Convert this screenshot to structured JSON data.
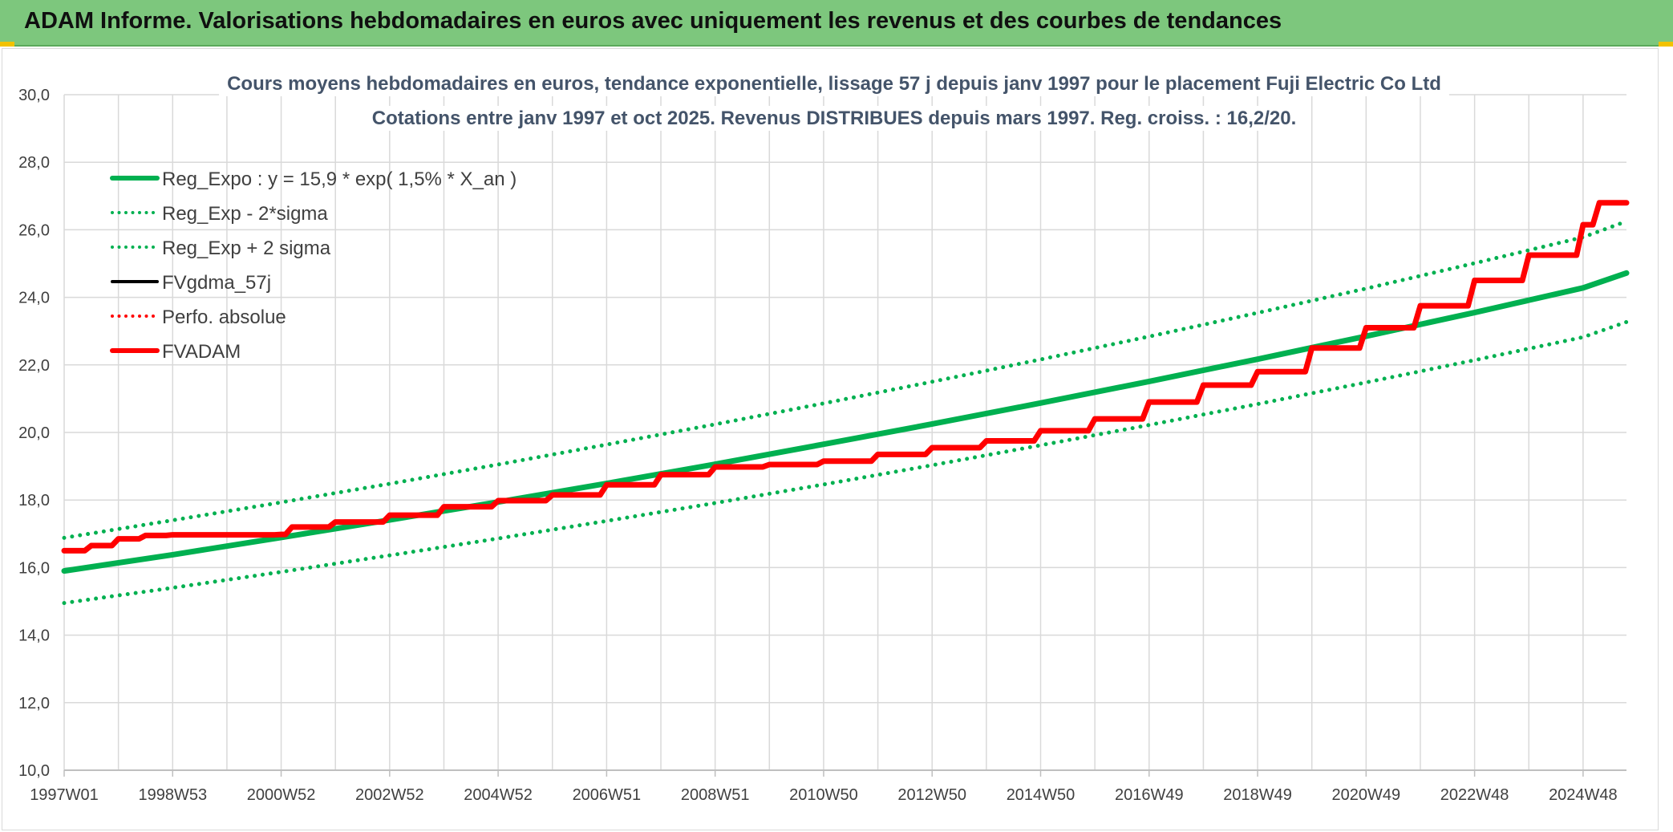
{
  "header": {
    "title": "ADAM Informe. Valorisations hebdomadaires en euros avec uniquement les revenus et des courbes de tendances"
  },
  "chart_data": {
    "type": "line",
    "title": "Cours moyens hebdomadaires en euros, tendance exponentielle, lissage 57 j depuis janv 1997 pour le placement Fuji Electric Co Ltd",
    "subtitle": "Cotations entre janv 1997 et oct 2025. Revenus DISTRIBUES depuis mars 1997. Reg. croiss. : 16,2/20.",
    "xlabel": "",
    "ylabel": "",
    "ylim": [
      10,
      30
    ],
    "xlim": [
      1997.0,
      2025.8
    ],
    "yticks": [
      "10,0",
      "12,0",
      "14,0",
      "16,0",
      "18,0",
      "20,0",
      "22,0",
      "24,0",
      "26,0",
      "28,0",
      "30,0"
    ],
    "xticks": [
      {
        "label": "1997W01",
        "x": 1997.0
      },
      {
        "label": "1998W53",
        "x": 1999.0
      },
      {
        "label": "2000W52",
        "x": 2001.0
      },
      {
        "label": "2002W52",
        "x": 2003.0
      },
      {
        "label": "2004W52",
        "x": 2005.0
      },
      {
        "label": "2006W51",
        "x": 2007.0
      },
      {
        "label": "2008W51",
        "x": 2009.0
      },
      {
        "label": "2010W50",
        "x": 2011.0
      },
      {
        "label": "2012W50",
        "x": 2013.0
      },
      {
        "label": "2014W50",
        "x": 2015.0
      },
      {
        "label": "2016W49",
        "x": 2017.0
      },
      {
        "label": "2018W49",
        "x": 2019.0
      },
      {
        "label": "2020W49",
        "x": 2021.0
      },
      {
        "label": "2022W48",
        "x": 2023.0
      },
      {
        "label": "2024W48",
        "x": 2025.0
      }
    ],
    "grid": true,
    "legend_position": "top-left",
    "colors": {
      "green": "#00b050",
      "red": "#ff0000",
      "black": "#000000",
      "grid": "#d9d9d9",
      "text": "#404040",
      "title": "#44546a"
    },
    "series": [
      {
        "name": "Reg_Expo : y = 15,9 * exp( 1,5% *  X_an )",
        "style": "solid",
        "color": "#00b050",
        "x": [
          1997.0,
          1999.0,
          2001.0,
          2003.0,
          2005.0,
          2007.0,
          2009.0,
          2011.0,
          2013.0,
          2015.0,
          2017.0,
          2019.0,
          2021.0,
          2023.0,
          2025.0,
          2025.8
        ],
        "values": [
          15.9,
          16.38,
          16.89,
          17.41,
          17.94,
          18.49,
          19.06,
          19.65,
          20.25,
          20.87,
          21.51,
          22.17,
          22.85,
          23.55,
          24.28,
          24.72
        ]
      },
      {
        "name": "Reg_Exp - 2*sigma",
        "style": "dotted",
        "color": "#00b050",
        "x": [
          1997.0,
          1999.0,
          2001.0,
          2003.0,
          2005.0,
          2007.0,
          2009.0,
          2011.0,
          2013.0,
          2015.0,
          2017.0,
          2019.0,
          2021.0,
          2023.0,
          2025.0,
          2025.8
        ],
        "values": [
          14.95,
          15.4,
          15.87,
          16.36,
          16.86,
          17.38,
          17.91,
          18.46,
          19.03,
          19.62,
          20.22,
          20.84,
          21.48,
          22.14,
          22.82,
          23.27
        ]
      },
      {
        "name": "Reg_Exp + 2 sigma",
        "style": "dotted",
        "color": "#00b050",
        "x": [
          1997.0,
          1999.0,
          2001.0,
          2003.0,
          2005.0,
          2007.0,
          2009.0,
          2011.0,
          2013.0,
          2015.0,
          2017.0,
          2019.0,
          2021.0,
          2023.0,
          2025.0,
          2025.8
        ],
        "values": [
          16.88,
          17.4,
          17.93,
          18.48,
          19.05,
          19.64,
          20.24,
          20.86,
          21.5,
          22.16,
          22.84,
          23.54,
          24.26,
          25.01,
          25.78,
          26.25
        ]
      },
      {
        "name": "FVgdma_57j",
        "style": "solid",
        "color": "#000000",
        "x": [
          1997.0,
          1997.5,
          1998.0,
          1998.5,
          1999.0,
          2000.0,
          2001.0,
          2001.2,
          2002.0,
          2003.0,
          2004.0,
          2005.0,
          2006.0,
          2007.0,
          2008.0,
          2009.0,
          2010.0,
          2011.0,
          2012.0,
          2013.0,
          2014.0,
          2015.0,
          2016.0,
          2017.0,
          2018.0,
          2019.0,
          2020.0,
          2021.0,
          2022.0,
          2023.0,
          2024.0,
          2025.0,
          2025.3,
          2025.8
        ],
        "values": [
          16.5,
          16.65,
          16.85,
          16.95,
          16.97,
          16.97,
          16.98,
          17.2,
          17.35,
          17.55,
          17.8,
          17.98,
          18.15,
          18.45,
          18.75,
          18.98,
          19.05,
          19.15,
          19.35,
          19.55,
          19.75,
          20.05,
          20.4,
          20.9,
          21.4,
          21.8,
          22.5,
          23.1,
          23.75,
          24.5,
          25.25,
          26.15,
          26.8,
          26.8
        ]
      },
      {
        "name": "Perfo. absolue",
        "style": "dotted",
        "color": "#ff0000",
        "x": [],
        "values": []
      },
      {
        "name": "FVADAM",
        "style": "solid",
        "color": "#ff0000",
        "x": [
          1997.0,
          1997.5,
          1998.0,
          1998.5,
          1999.0,
          2000.0,
          2001.0,
          2001.2,
          2002.0,
          2003.0,
          2004.0,
          2005.0,
          2006.0,
          2007.0,
          2008.0,
          2009.0,
          2010.0,
          2011.0,
          2012.0,
          2013.0,
          2014.0,
          2015.0,
          2016.0,
          2017.0,
          2018.0,
          2019.0,
          2020.0,
          2021.0,
          2022.0,
          2023.0,
          2024.0,
          2025.0,
          2025.3,
          2025.8
        ],
        "values": [
          16.5,
          16.65,
          16.85,
          16.95,
          16.97,
          16.97,
          16.98,
          17.2,
          17.35,
          17.55,
          17.8,
          17.98,
          18.15,
          18.45,
          18.75,
          18.98,
          19.05,
          19.15,
          19.35,
          19.55,
          19.75,
          20.05,
          20.4,
          20.9,
          21.4,
          21.8,
          22.5,
          23.1,
          23.75,
          24.5,
          25.25,
          26.15,
          26.8,
          26.8
        ]
      }
    ]
  }
}
